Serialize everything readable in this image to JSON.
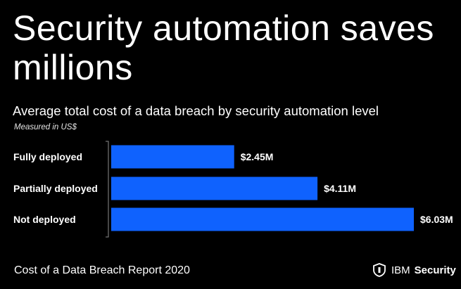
{
  "headline": "Security automation saves millions",
  "subtitle": "Average total cost of a data breach by security automation level",
  "measure_note": "Measured in US$",
  "footer": "Cost of a Data Breach Report 2020",
  "brand": {
    "company": "IBM",
    "product": "Security",
    "logo_icon": "shield-security-icon"
  },
  "colors": {
    "bar": "#0F62FE",
    "background": "#000000",
    "text": "#FFFFFF",
    "axis": "#8D8D8D"
  },
  "chart_data": {
    "type": "bar",
    "orientation": "horizontal",
    "categories": [
      "Fully deployed",
      "Partially deployed",
      "Not deployed"
    ],
    "values": [
      2.45,
      4.11,
      6.03
    ],
    "value_labels": [
      "$2.45M",
      "$4.11M",
      "$6.03M"
    ],
    "unit": "US$ millions",
    "grid": false,
    "legend": "none"
  }
}
